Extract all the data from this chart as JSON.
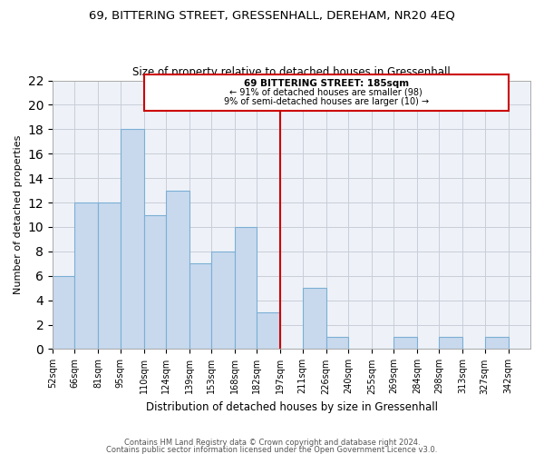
{
  "title1": "69, BITTERING STREET, GRESSENHALL, DEREHAM, NR20 4EQ",
  "title2": "Size of property relative to detached houses in Gressenhall",
  "xlabel": "Distribution of detached houses by size in Gressenhall",
  "ylabel": "Number of detached properties",
  "bin_labels": [
    "52sqm",
    "66sqm",
    "81sqm",
    "95sqm",
    "110sqm",
    "124sqm",
    "139sqm",
    "153sqm",
    "168sqm",
    "182sqm",
    "197sqm",
    "211sqm",
    "226sqm",
    "240sqm",
    "255sqm",
    "269sqm",
    "284sqm",
    "298sqm",
    "313sqm",
    "327sqm",
    "342sqm"
  ],
  "bin_edges": [
    52,
    66,
    81,
    95,
    110,
    124,
    139,
    153,
    168,
    182,
    197,
    211,
    226,
    240,
    255,
    269,
    284,
    298,
    313,
    327,
    342,
    356
  ],
  "counts": [
    6,
    12,
    12,
    18,
    11,
    13,
    7,
    8,
    10,
    3,
    0,
    5,
    1,
    0,
    0,
    1,
    0,
    1,
    0,
    1,
    0
  ],
  "bar_color": "#c8d9ee",
  "bar_edge_color": "#7bafd4",
  "line_color": "#cc0000",
  "box_line_color": "#cc0000",
  "ylim": [
    0,
    22
  ],
  "yticks": [
    0,
    2,
    4,
    6,
    8,
    10,
    12,
    14,
    16,
    18,
    20,
    22
  ],
  "annotation_title": "69 BITTERING STREET: 185sqm",
  "annotation_line1": "← 91% of detached houses are smaller (98)",
  "annotation_line2": "9% of semi-detached houses are larger (10) →",
  "footnote1": "Contains HM Land Registry data © Crown copyright and database right 2024.",
  "footnote2": "Contains public sector information licensed under the Open Government Licence v3.0.",
  "plot_bg_color": "#eef2f8",
  "grid_color": "#c8cdd8"
}
